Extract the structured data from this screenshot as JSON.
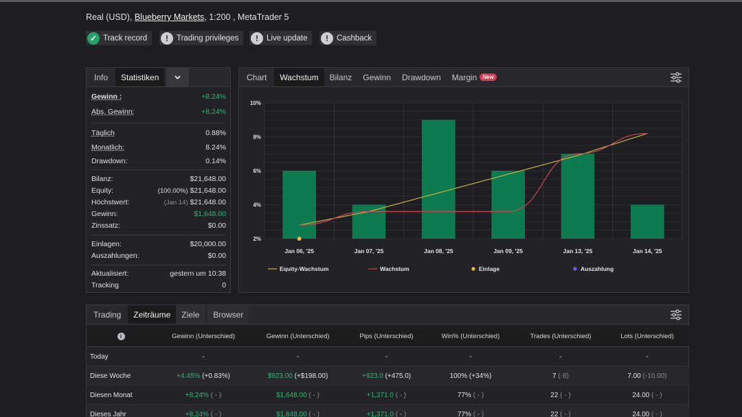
{
  "account": {
    "prefix": "Real (USD), ",
    "broker": "Blueberry Markets",
    "suffix": ", 1:200 , MetaTrader 5"
  },
  "badges": [
    {
      "label": "Track record",
      "icon": "check-icon",
      "status": "ok"
    },
    {
      "label": "Trading privileges",
      "icon": "exclamation-icon",
      "status": "warn"
    },
    {
      "label": "Live update",
      "icon": "exclamation-icon",
      "status": "warn"
    },
    {
      "label": "Cashback",
      "icon": "exclamation-icon",
      "status": "warn"
    }
  ],
  "stats_tabs": {
    "info": "Info",
    "stats": "Statistiken",
    "dropdown": "chevron-down-icon"
  },
  "stats": {
    "gain_label": "Gewinn :",
    "gain_value": "+8.24%",
    "abs_gain_label": "Abs. Gewinn:",
    "abs_gain_value": "+8.24%",
    "daily_label": "Täglich",
    "daily_value": "0.88%",
    "monthly_label": "Monatlich:",
    "monthly_value": "8.24%",
    "drawdown_label": "Drawdown:",
    "drawdown_value": "0.14%",
    "balance_label": "Bilanz:",
    "balance_value": "$21,648.00",
    "equity_label": "Equity:",
    "equity_pct": "(100.00%)",
    "equity_value": "$21,648.00",
    "high_label": "Höchstwert:",
    "high_date": "(Jan 14)",
    "high_value": "$21,648.00",
    "profit_label": "Gewinn:",
    "profit_value": "$1,648.00",
    "interest_label": "Zinssatz:",
    "interest_value": "$0.00",
    "deposits_label": "Einlagen:",
    "deposits_value": "$20,000.00",
    "withdrawals_label": "Auszahlungen:",
    "withdrawals_value": "$0.00",
    "updated_label": "Aktualisiert:",
    "updated_value": "gestern um 10:38",
    "tracking_label": "Tracking",
    "tracking_value": "0"
  },
  "chart_tabs": {
    "chart": "Chart",
    "growth": "Wachstum",
    "balance": "Bilanz",
    "profit": "Gewinn",
    "drawdown": "Drawdown",
    "margin": "Margin",
    "new_badge": "New"
  },
  "chart_data": {
    "type": "bar",
    "categories": [
      "Jan 06, '25",
      "Jan 07, '25",
      "Jan 08, '25",
      "Jan 09, '25",
      "Jan 13, '25",
      "Jan 14, '25"
    ],
    "ylim": [
      2,
      10
    ],
    "yticks": [
      "2%",
      "4%",
      "6%",
      "8%",
      "10%"
    ],
    "grid": true,
    "legend_position": "bottom",
    "series": [
      {
        "name": "Wachstum",
        "kind": "bar",
        "color": "#0e7a4f",
        "values": [
          6.0,
          4.0,
          9.0,
          6.0,
          7.0,
          4.0
        ]
      },
      {
        "name": "Equity-Wachstum",
        "kind": "line",
        "color": "#c9b541",
        "values": [
          2.8,
          3.6,
          4.7,
          5.8,
          6.9,
          8.2
        ]
      },
      {
        "name": "Wachstum",
        "kind": "line",
        "color": "#c94756",
        "values": [
          2.8,
          3.6,
          3.6,
          3.6,
          7.0,
          8.2
        ]
      },
      {
        "name": "Einlage",
        "kind": "marker",
        "color": "#f0b93a",
        "values": [
          2.0,
          null,
          null,
          null,
          null,
          null
        ]
      }
    ],
    "legend": [
      {
        "label": "Equity-Wachstum",
        "color": "#c9b541",
        "shape": "line"
      },
      {
        "label": "Wachstum",
        "color": "#c94756",
        "shape": "line"
      },
      {
        "label": "Einlage",
        "color": "#f0b93a",
        "shape": "dot"
      },
      {
        "label": "Auszahlung",
        "color": "#6d5cf0",
        "shape": "dot"
      }
    ]
  },
  "table_tabs": {
    "trading": "Trading",
    "periods": "Zeiträume",
    "goals": "Ziele",
    "browser": "Browser"
  },
  "table": {
    "headers": [
      "Gewinn (Unterschied)",
      "Gewinn (Unterschied)",
      "Pips (Unterschied)",
      "Win% (Unterschied)",
      "Trades (Unterschied)",
      "Lots (Unterschied)"
    ],
    "rows": [
      {
        "period": "Today",
        "gain": "-",
        "gain_diff": "",
        "profit": "-",
        "profit_diff": "",
        "pips": "-",
        "pips_diff": "",
        "win": "-",
        "win_diff": "",
        "trades": "-",
        "trades_diff": "",
        "lots": "-",
        "lots_diff": ""
      },
      {
        "period": "Diese Woche",
        "gain": "+4.45%",
        "gain_diff": "(+0.83%)",
        "profit": "$923.00",
        "profit_diff": "(+$198.00)",
        "pips": "+923.0",
        "pips_diff": "(+475.0)",
        "win": "100%",
        "win_diff": "(+34%)",
        "trades": "7",
        "trades_diff": "(-8)",
        "lots": "7.00",
        "lots_diff": "(-10.00)"
      },
      {
        "period": "Diesen Monat",
        "gain": "+8.24%",
        "gain_diff": "( - )",
        "profit": "$1,648.00",
        "profit_diff": "( - )",
        "pips": "+1,371.0",
        "pips_diff": "( - )",
        "win": "77%",
        "win_diff": "( - )",
        "trades": "22",
        "trades_diff": "( - )",
        "lots": "24.00",
        "lots_diff": "( - )"
      },
      {
        "period": "Dieses Jahr",
        "gain": "+8.24%",
        "gain_diff": "( - )",
        "profit": "$1,648.00",
        "profit_diff": "( - )",
        "pips": "+1,371.0",
        "pips_diff": "( - )",
        "win": "77%",
        "win_diff": "( - )",
        "trades": "22",
        "trades_diff": "( - )",
        "lots": "24.00",
        "lots_diff": "( - )"
      }
    ]
  },
  "colors": {
    "accent_green": "#2fb77a",
    "bar_green": "#0e7a4f",
    "background": "#1e1d21",
    "new_badge": "#d8394d"
  }
}
